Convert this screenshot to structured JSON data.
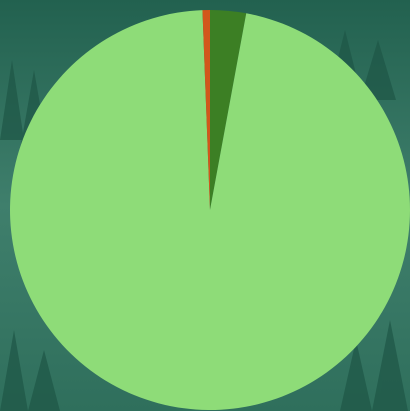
{
  "chart_data": {
    "type": "pie",
    "values": [
      2.9,
      96.5,
      0.6
    ],
    "colors": [
      "#3c7f24",
      "#8edc78",
      "#d2571b"
    ]
  }
}
